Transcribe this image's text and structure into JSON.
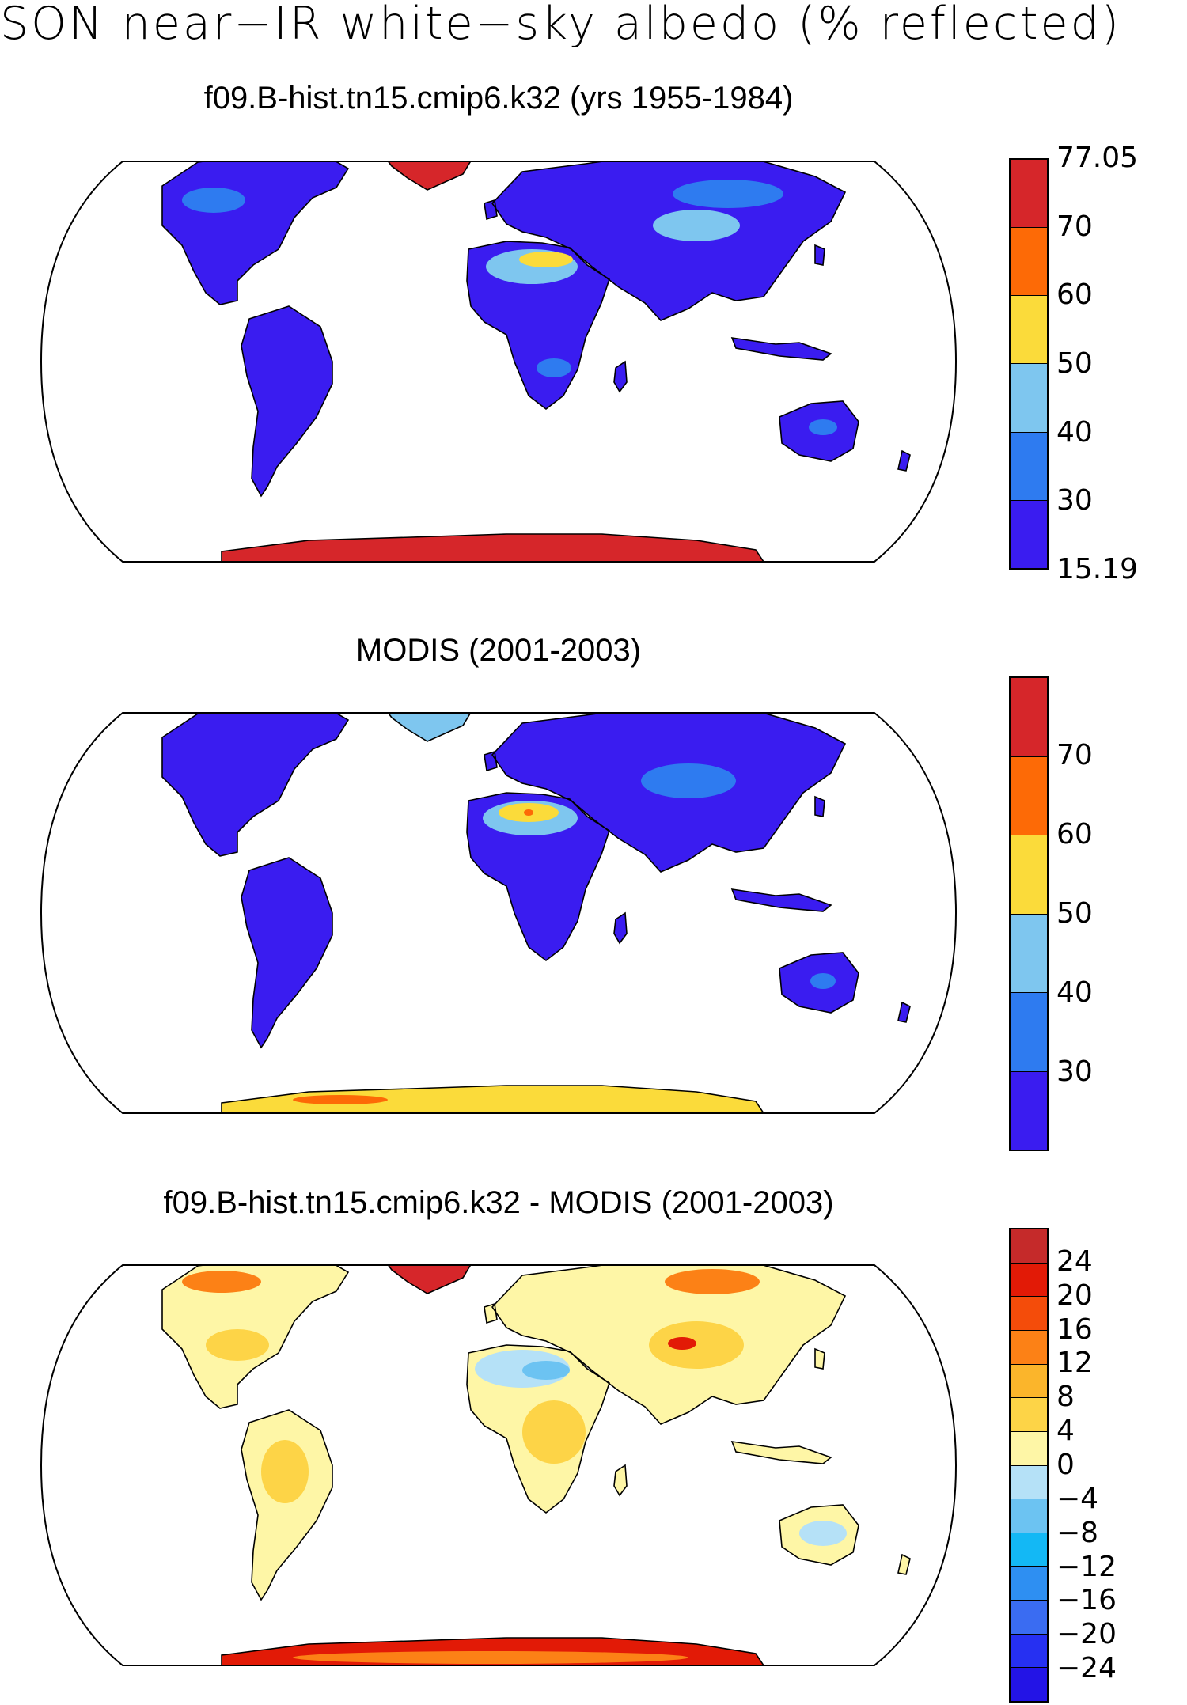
{
  "main_title": "SON near−IR white−sky albedo (% reflected)",
  "panels": [
    {
      "title": "f09.B-hist.tn15.cmip6.k32 (yrs 1955-1984)",
      "colorbar": {
        "colors": [
          "#3a1cf0",
          "#2e7bf0",
          "#7ec6ef",
          "#fbdb3a",
          "#fd6a06",
          "#d6262a"
        ],
        "labels": [
          "15.19",
          "30",
          "40",
          "50",
          "60",
          "70",
          "77.05"
        ]
      }
    },
    {
      "title": "MODIS (2001-2003)",
      "colorbar": {
        "colors": [
          "#3a1cf0",
          "#2e7bf0",
          "#7ec6ef",
          "#fbdb3a",
          "#fd6a06",
          "#d6262a"
        ],
        "labels": [
          "",
          "30",
          "40",
          "50",
          "60",
          "70",
          ""
        ]
      }
    },
    {
      "title": "f09.B-hist.tn15.cmip6.k32 - MODIS (2001-2003)",
      "colorbar": {
        "colors": [
          "#2314e6",
          "#2630f2",
          "#3a6cf2",
          "#2e8ff2",
          "#13b8f5",
          "#6cc3f2",
          "#b5e1f7",
          "#fef6a6",
          "#fdd447",
          "#fbb52b",
          "#fc8116",
          "#f44c0a",
          "#e21a06",
          "#c52a2a"
        ],
        "labels": [
          "",
          "−24",
          "−20",
          "−16",
          "−12",
          "−8",
          "−4",
          "0",
          "4",
          "8",
          "12",
          "16",
          "20",
          "24",
          ""
        ]
      }
    }
  ]
}
